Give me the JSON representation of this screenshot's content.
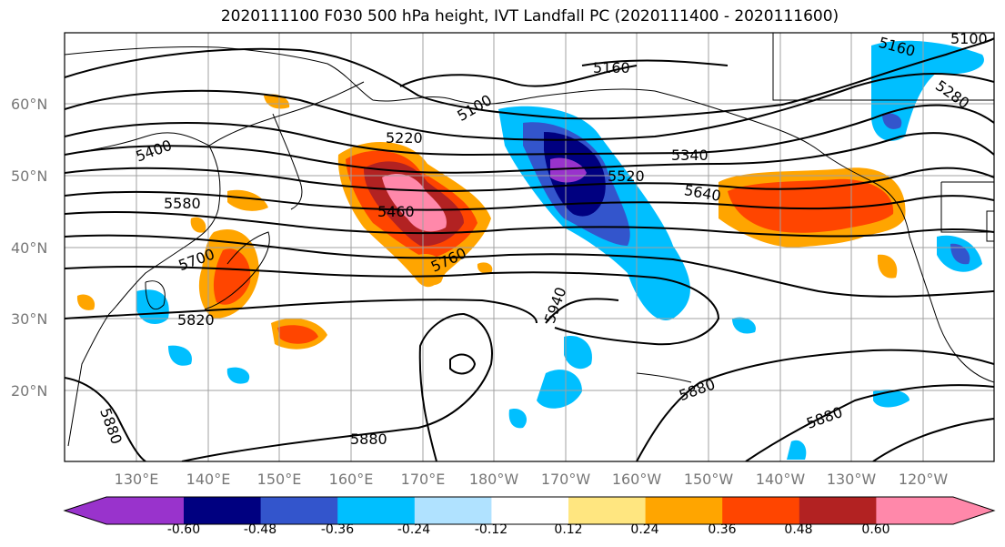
{
  "title": "2020111100 F030 500 hPa height, IVT Landfall PC (2020111400 - 2020111600)",
  "lat_labels": [
    "60°N",
    "50°N",
    "40°N",
    "30°N",
    "20°N"
  ],
  "lon_labels": [
    "130°E",
    "140°E",
    "150°E",
    "160°E",
    "170°E",
    "180°W",
    "170°W",
    "160°W",
    "150°W",
    "140°W",
    "130°W",
    "120°W"
  ],
  "colorbar": {
    "colors": [
      "#9933cc",
      "#000080",
      "#3355cc",
      "#00bfff",
      "#b0e2ff",
      "#ffffff",
      "#ffe680",
      "#ffa500",
      "#ff4500",
      "#b22222",
      "#ff88aa"
    ],
    "tick_labels": [
      "-0.60",
      "-0.48",
      "-0.36",
      "-0.24",
      "-0.12",
      "0.12",
      "0.24",
      "0.36",
      "0.48",
      "0.60"
    ]
  },
  "contour_labels": [
    "5100",
    "5160",
    "5160",
    "5100",
    "5220",
    "5280",
    "5400",
    "5340",
    "5460",
    "5520",
    "5580",
    "5640",
    "5700",
    "5760",
    "5820",
    "5940",
    "5880",
    "5880",
    "5880",
    "5880"
  ]
}
